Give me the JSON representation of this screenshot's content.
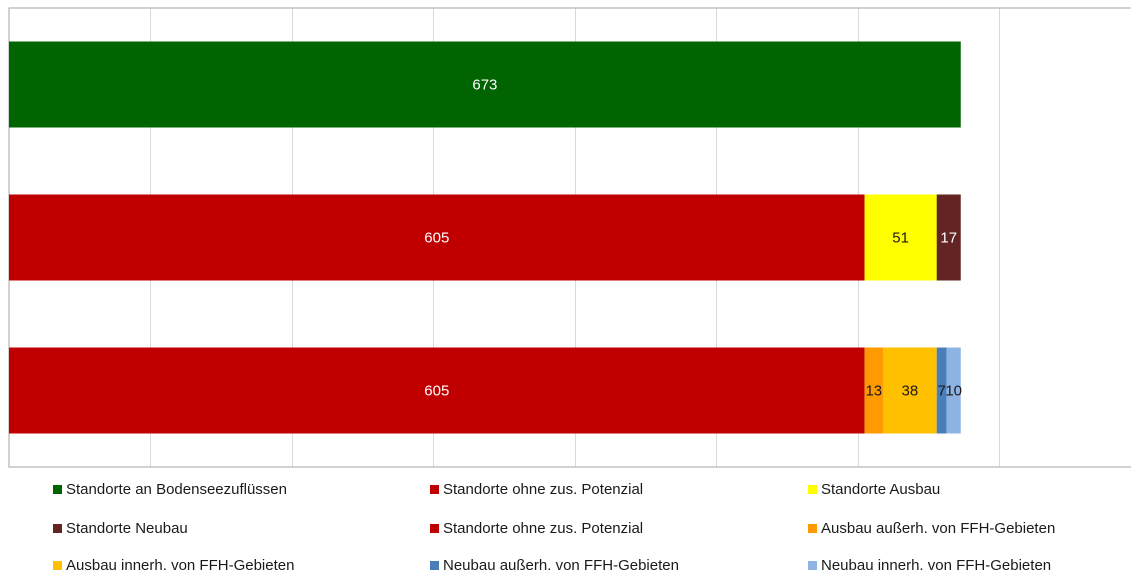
{
  "chart_data": {
    "type": "bar",
    "orientation": "horizontal",
    "stacked": true,
    "xlim": [
      0,
      700
    ],
    "grid": true,
    "legend_position": "bottom",
    "rows": [
      {
        "segments": [
          {
            "series": "Standorte an Bodenseezuflüssen",
            "value": 673,
            "label": "673",
            "color": "#006400"
          }
        ]
      },
      {
        "segments": [
          {
            "series": "Standorte ohne zus. Potenzial",
            "value": 605,
            "label": "605",
            "color": "#C00000"
          },
          {
            "series": "Standorte Ausbau",
            "value": 51,
            "label": "51",
            "color": "#FFFF00"
          },
          {
            "series": "Standorte Neubau",
            "value": 17,
            "label": "17",
            "color": "#632523"
          }
        ]
      },
      {
        "segments": [
          {
            "series": "Standorte ohne zus. Potenzial",
            "value": 605,
            "label": "605",
            "color": "#C00000"
          },
          {
            "series": "Ausbau außerh. von FFH-Gebieten",
            "value": 13,
            "label": "13",
            "color": "#FF9900"
          },
          {
            "series": "Ausbau innerh. von FFH-Gebieten",
            "value": 38,
            "label": "38",
            "color": "#FFC000"
          },
          {
            "series": "Neubau außerh. von FFH-Gebieten",
            "value": 7,
            "label": "7",
            "color": "#4A7EBB"
          },
          {
            "series": "Neubau innerh. von FFH-Gebieten",
            "value": 10,
            "label": "10",
            "color": "#8EB4E3"
          }
        ]
      }
    ],
    "legend": [
      {
        "label": "Standorte an Bodenseezuflüssen",
        "color": "#006400"
      },
      {
        "label": "Standorte ohne zus. Potenzial",
        "color": "#C00000"
      },
      {
        "label": "Standorte Ausbau",
        "color": "#FFFF00"
      },
      {
        "label": "Standorte Neubau",
        "color": "#632523"
      },
      {
        "label": "Standorte ohne zus. Potenzial",
        "color": "#C00000"
      },
      {
        "label": "Ausbau außerh. von FFH-Gebieten",
        "color": "#FF9900"
      },
      {
        "label": "Ausbau innerh. von FFH-Gebieten",
        "color": "#FFC000"
      },
      {
        "label": "Neubau außerh. von FFH-Gebieten",
        "color": "#4A7EBB"
      },
      {
        "label": "Neubau innerh. von FFH-Gebieten",
        "color": "#8EB4E3"
      }
    ]
  }
}
